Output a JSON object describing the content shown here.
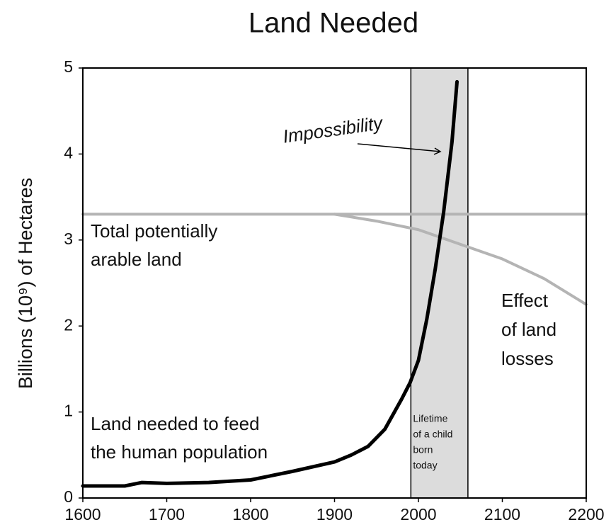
{
  "chart_data": {
    "type": "line",
    "title": "Land Needed",
    "ylabel": "Billions (10⁹) of Hectares",
    "xlim": [
      1600,
      2200
    ],
    "ylim": [
      0,
      5
    ],
    "xticks": [
      1600,
      1700,
      1800,
      1900,
      2000,
      2100,
      2200
    ],
    "yticks": [
      0,
      1,
      2,
      3,
      4,
      5
    ],
    "series": [
      {
        "color": "#000000",
        "x": [
          1600,
          1650,
          1670,
          1700,
          1750,
          1800,
          1850,
          1900,
          1920,
          1940,
          1960,
          1980,
          1990,
          2000,
          2010,
          2020,
          2030,
          2040,
          2046
        ],
        "values": [
          0.14,
          0.14,
          0.18,
          0.17,
          0.18,
          0.21,
          0.31,
          0.42,
          0.5,
          0.6,
          0.8,
          1.15,
          1.34,
          1.6,
          2.08,
          2.66,
          3.32,
          4.14,
          4.84
        ]
      },
      {
        "color": "#b4b4b4",
        "x": [
          1600,
          2200
        ],
        "values": [
          3.3,
          3.3
        ]
      },
      {
        "color": "#b4b4b4",
        "x": [
          1900,
          1950,
          2000,
          2050,
          2100,
          2150,
          2200
        ],
        "values": [
          3.3,
          3.22,
          3.12,
          2.95,
          2.78,
          2.55,
          2.25
        ]
      }
    ],
    "shaded_region": {
      "x": [
        1991,
        2059
      ],
      "color": "#dcdcdc",
      "lines": [
        "Lifetime",
        "of a child",
        "born",
        "today"
      ]
    },
    "annotations": [
      {
        "lines": [
          "Impossibility"
        ]
      },
      {
        "lines": [
          "Total potentially",
          "arable land"
        ]
      },
      {
        "lines": [
          "Effect",
          "of land",
          "losses"
        ]
      },
      {
        "lines": [
          "Land needed to feed",
          "the human population"
        ]
      }
    ]
  }
}
